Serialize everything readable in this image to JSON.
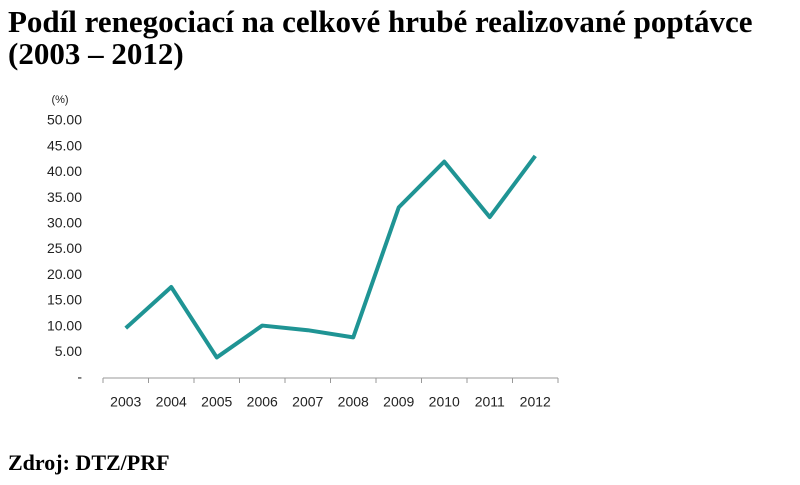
{
  "chart_data": {
    "type": "line",
    "title": "Podíl renegociací na celkové hrubé realizované poptávce (2003 – 2012)",
    "y_label": "(%)",
    "source": "Zdroj: DTZ/PRF",
    "categories": [
      "2003",
      "2004",
      "2005",
      "2006",
      "2007",
      "2008",
      "2009",
      "2010",
      "2011",
      "2012"
    ],
    "values": [
      9.7,
      17.7,
      4.0,
      10.2,
      9.3,
      7.9,
      33.2,
      42.1,
      31.3,
      43.2
    ],
    "color": "#1f9494",
    "ylim": [
      0,
      50
    ],
    "yticks": [
      {
        "value": 0,
        "label": "-"
      },
      {
        "value": 5,
        "label": "5.00"
      },
      {
        "value": 10,
        "label": "10.00"
      },
      {
        "value": 15,
        "label": "15.00"
      },
      {
        "value": 20,
        "label": "20.00"
      },
      {
        "value": 25,
        "label": "25.00"
      },
      {
        "value": 30,
        "label": "30.00"
      },
      {
        "value": 35,
        "label": "35.00"
      },
      {
        "value": 40,
        "label": "40.00"
      },
      {
        "value": 45,
        "label": "45.00"
      },
      {
        "value": 50,
        "label": "50.00"
      }
    ],
    "grid": false
  }
}
